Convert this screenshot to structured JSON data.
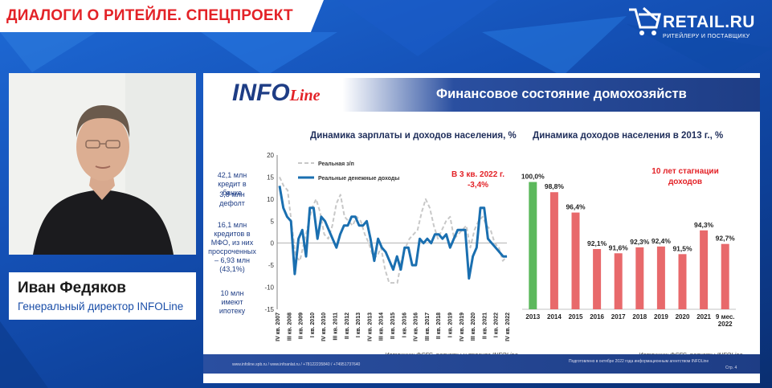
{
  "header": {
    "title": "ДИАЛОГИ О РИТЕЙЛЕ. СПЕЦПРОЕКТ"
  },
  "brand": {
    "name": "RETAIL.RU",
    "tagline": "РИТЕЙЛЕРУ И ПОСТАВЩИКУ"
  },
  "speaker": {
    "name": "Иван Федяков",
    "role": "Генеральный директор INFOLine"
  },
  "slide": {
    "logo_main": "INFO",
    "logo_sub": "Line",
    "title": "Финансовое состояние домохозяйств",
    "footer_left": "www.infoline.spb.ru / www.infoanlat.ru / +78122235840 / +74951737640",
    "footer_right": "Подготовлено в октябре 2022 года информационным агентством INFOLine",
    "footer_page": "Стр. 4"
  },
  "annotations": {
    "a1": [
      "42,1 млн",
      "кредит в банке"
    ],
    "a2": [
      "3,8 млн",
      "дефолт"
    ],
    "a3": [
      "16,1 млн",
      "кредитов в",
      "МФО, из них",
      "просроченных",
      "– 6,93 млн",
      "(43,1%)"
    ],
    "a4": [
      "10 млн",
      "имеют ипотеку"
    ]
  },
  "chart_data": [
    {
      "type": "line",
      "title": "Динамика зарплаты и доходов населения, %",
      "ylim": [
        -15,
        20
      ],
      "yticks": [
        -15,
        -10,
        -5,
        0,
        5,
        10,
        15,
        20
      ],
      "xticks": [
        "IV кв. 2007",
        "III кв. 2008",
        "II кв. 2009",
        "I кв. 2010",
        "IV кв. 2010",
        "III кв. 2011",
        "II кв. 2012",
        "I кв. 2013",
        "IV кв. 2013",
        "III кв. 2014",
        "II кв. 2015",
        "I кв. 2016",
        "IV кв. 2016",
        "III кв. 2017",
        "II кв. 2018",
        "I кв. 2019",
        "IV кв. 2019",
        "III кв. 2020",
        "II кв. 2021",
        "I кв. 2022",
        "IV кв. 2022"
      ],
      "series": [
        {
          "name": "Реальная з/п",
          "color": "#c8c8c8",
          "dashed": true,
          "values": [
            15,
            13,
            12,
            4,
            -3,
            -4,
            0,
            4,
            8,
            10,
            7,
            2,
            1,
            4,
            9,
            11,
            6,
            5,
            4,
            6,
            5,
            2,
            0,
            -3,
            -3,
            -1,
            -6,
            -9,
            -9,
            -9,
            -4,
            -1,
            1,
            2,
            3,
            7,
            10,
            8,
            4,
            1,
            3,
            5,
            6,
            1,
            2,
            3,
            4,
            -1,
            3,
            5,
            6,
            4,
            3,
            0,
            -1,
            -4,
            -3
          ]
        },
        {
          "name": "Реальные денежные доходы",
          "color": "#1a6fb0",
          "dashed": false,
          "values": [
            13,
            8,
            6,
            5,
            -7,
            1,
            3,
            -3,
            8,
            8,
            1,
            6,
            5,
            3,
            1,
            -1,
            2,
            4,
            4,
            6,
            6,
            4,
            4,
            5,
            1,
            -4,
            1,
            -1,
            -2,
            -4,
            -6,
            -3,
            -6,
            -1,
            -1,
            -5,
            -5,
            1,
            0,
            1,
            0,
            2,
            2,
            1,
            2,
            -1,
            1,
            3,
            3,
            3,
            -8,
            -3,
            -1,
            8,
            8,
            1,
            0,
            -1,
            -2,
            -3,
            -3
          ]
        }
      ],
      "annotation": [
        "В 3 кв. 2022 г.",
        "-3,4%"
      ],
      "source": "Источник: ФСГС, расчеты и прогноз INFOLine"
    },
    {
      "type": "bar",
      "title": "Динамика доходов населения в 2013 г., %",
      "categories": [
        "2013",
        "2014",
        "2015",
        "2016",
        "2017",
        "2018",
        "2019",
        "2020",
        "2021",
        "9 мес. 2022"
      ],
      "values": [
        100.0,
        98.8,
        96.4,
        92.1,
        91.6,
        92.3,
        92.4,
        91.5,
        94.3,
        92.7
      ],
      "value_labels": [
        "100,0%",
        "98,8%",
        "96,4%",
        "92,1%",
        "91,6%",
        "92,3%",
        "92,4%",
        "91,5%",
        "94,3%",
        "92,7%"
      ],
      "ylim": [
        85,
        101
      ],
      "colors": [
        "#5cb85c",
        "#e8696b",
        "#e8696b",
        "#e8696b",
        "#e8696b",
        "#e8696b",
        "#e8696b",
        "#e8696b",
        "#e8696b",
        "#e8696b"
      ],
      "annotation": [
        "10 лет стагнации",
        "доходов"
      ],
      "source": "Источник: ФСГС, расчеты INFOLine"
    }
  ]
}
